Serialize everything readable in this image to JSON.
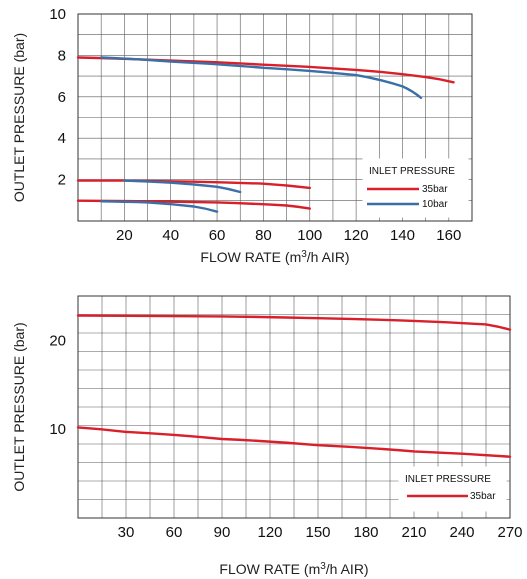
{
  "colors": {
    "red": "#d81f2a",
    "blue": "#3a6fa8",
    "grid": "#5a5a5a"
  },
  "chart_data": [
    {
      "type": "line",
      "xlabel": {
        "pre": "FLOW RATE (m",
        "sup": "3",
        "post": "/h AIR)"
      },
      "ylabel": "OUTLET PRESSURE (bar)",
      "xlim": [
        0,
        170
      ],
      "ylim": [
        0,
        10
      ],
      "x_ticks": [
        "20",
        "40",
        "60",
        "80",
        "100",
        "120",
        "140",
        "160"
      ],
      "y_ticks": [
        "2",
        "4",
        "6",
        "8",
        "10"
      ],
      "grid": true,
      "legend": {
        "title": "INLET PRESSURE",
        "placement": "bottom-right",
        "entries": [
          "35bar",
          "10bar"
        ]
      },
      "series": [
        {
          "name": "35bar",
          "color": "#d81f2a",
          "x": [
            0,
            40,
            80,
            120,
            150,
            162
          ],
          "y": [
            7.9,
            7.75,
            7.55,
            7.3,
            6.95,
            6.7
          ]
        },
        {
          "name": "10bar",
          "color": "#3a6fa8",
          "x": [
            10,
            40,
            80,
            120,
            140,
            148
          ],
          "y": [
            7.9,
            7.7,
            7.4,
            7.05,
            6.5,
            5.95
          ]
        },
        {
          "name": "35bar",
          "color": "#d81f2a",
          "x": [
            0,
            20,
            50,
            80,
            100
          ],
          "y": [
            1.95,
            1.95,
            1.9,
            1.8,
            1.6
          ]
        },
        {
          "name": "10bar",
          "color": "#3a6fa8",
          "x": [
            20,
            40,
            60,
            70
          ],
          "y": [
            1.95,
            1.85,
            1.65,
            1.4
          ]
        },
        {
          "name": "35bar",
          "color": "#d81f2a",
          "x": [
            0,
            30,
            60,
            90,
            100
          ],
          "y": [
            0.98,
            0.95,
            0.9,
            0.75,
            0.6
          ]
        },
        {
          "name": "10bar",
          "color": "#3a6fa8",
          "x": [
            10,
            30,
            50,
            60
          ],
          "y": [
            0.95,
            0.9,
            0.7,
            0.45
          ]
        }
      ]
    },
    {
      "type": "line",
      "xlabel": {
        "pre": "FLOW RATE (m",
        "sup": "3",
        "post": "/h AIR)"
      },
      "ylabel": "OUTLET PRESSURE (bar)",
      "xlim": [
        0,
        270
      ],
      "ylim": [
        0,
        25
      ],
      "x_ticks": [
        "30",
        "60",
        "90",
        "120",
        "150",
        "180",
        "210",
        "240",
        "270"
      ],
      "y_ticks": [
        "10",
        "20"
      ],
      "grid": true,
      "legend": {
        "title": "INLET PRESSURE",
        "placement": "bottom-right",
        "entries": [
          "35bar"
        ]
      },
      "series": [
        {
          "name": "35bar",
          "color": "#d81f2a",
          "x": [
            0,
            90,
            150,
            210,
            255,
            270
          ],
          "y": [
            22.8,
            22.7,
            22.5,
            22.2,
            21.8,
            21.2
          ]
        },
        {
          "name": "35bar",
          "color": "#d81f2a",
          "x": [
            0,
            30,
            90,
            150,
            210,
            270
          ],
          "y": [
            10.2,
            9.7,
            8.9,
            8.2,
            7.5,
            6.9
          ]
        }
      ]
    }
  ]
}
